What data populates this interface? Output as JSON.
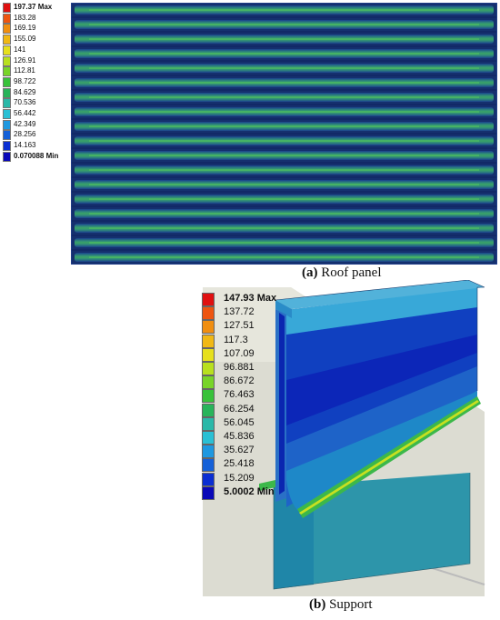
{
  "panel_a": {
    "legend": [
      "197.37 Max",
      "183.28",
      "169.19",
      "155.09",
      "141",
      "126.91",
      "112.81",
      "98.722",
      "84.629",
      "70.536",
      "56.442",
      "42.349",
      "28.256",
      "14.163",
      "0.070088 Min"
    ],
    "colors": [
      "#e01010",
      "#ee5510",
      "#f08e10",
      "#f0b814",
      "#e6e01c",
      "#b8e01e",
      "#78d428",
      "#38c23a",
      "#28b45a",
      "#2ab8a8",
      "#2ac0d4",
      "#1e98e0",
      "#1460d8",
      "#0a2ed2",
      "#0a08b8"
    ],
    "caption_letter": "(a)",
    "caption_text": " Roof panel"
  },
  "panel_b": {
    "legend": [
      "147.93 Max",
      "137.72",
      "127.51",
      "117.3",
      "107.09",
      "96.881",
      "86.672",
      "76.463",
      "66.254",
      "56.045",
      "45.836",
      "35.627",
      "25.418",
      "15.209",
      "5.0002 Min"
    ],
    "colors": [
      "#e01010",
      "#ee5510",
      "#f08e10",
      "#f0b814",
      "#e6e01c",
      "#b8e01e",
      "#78d428",
      "#38c23a",
      "#28b45a",
      "#2ab8a8",
      "#2ac0d4",
      "#1e98e0",
      "#1460d8",
      "#0a2ed2",
      "#0a08b8"
    ],
    "caption_letter": "(b)",
    "caption_text": " Support"
  }
}
